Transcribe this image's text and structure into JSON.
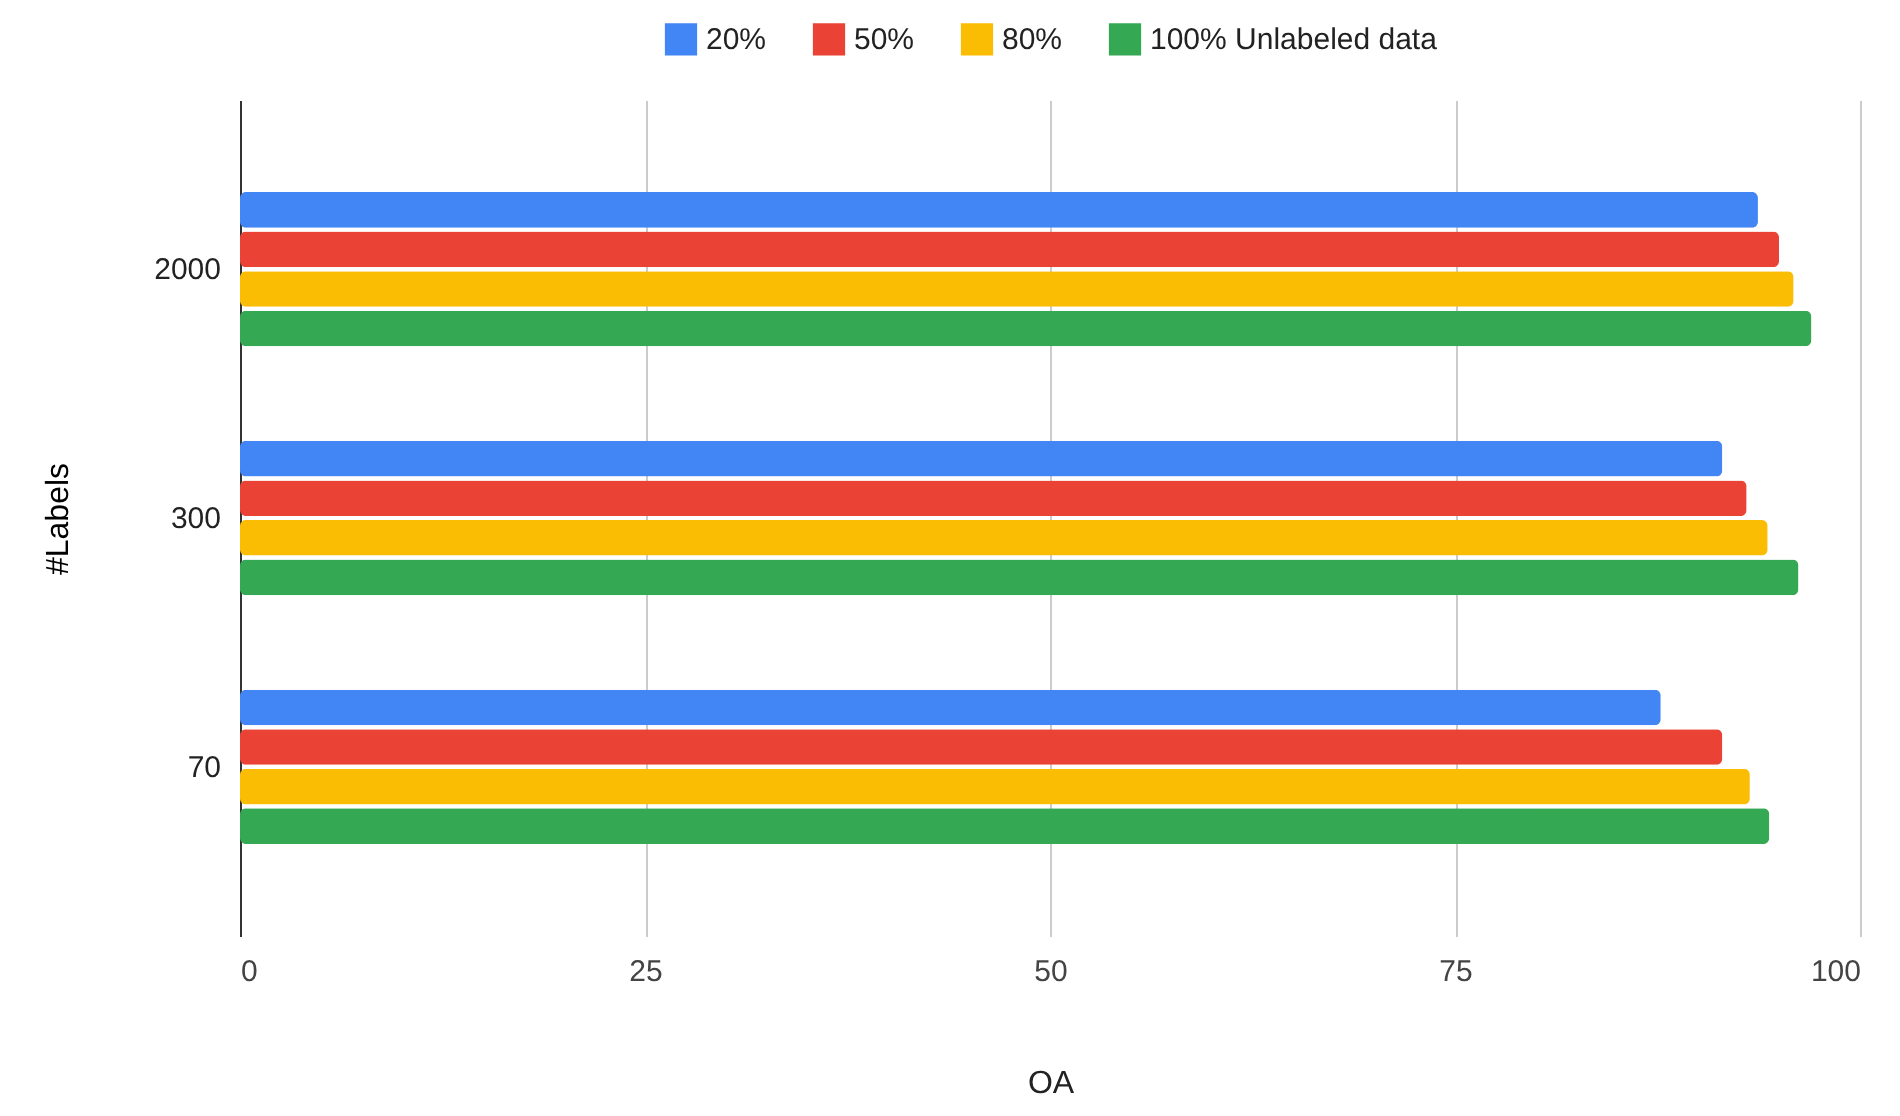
{
  "chart_data": {
    "type": "bar",
    "orientation": "horizontal",
    "xlabel": "OA",
    "ylabel": "#Labels",
    "categories": [
      "2000",
      "300",
      "70"
    ],
    "series": [
      {
        "name": "20%",
        "color": "#4285f4",
        "values": [
          93.7,
          91.5,
          87.7
        ]
      },
      {
        "name": "50%",
        "color": "#ea4335",
        "values": [
          95.0,
          93.0,
          91.5
        ]
      },
      {
        "name": "80%",
        "color": "#fbbc04",
        "values": [
          95.9,
          94.3,
          93.2
        ]
      },
      {
        "name": "100% Unlabeled data",
        "color": "#34a853",
        "values": [
          97.0,
          96.2,
          94.4
        ]
      }
    ],
    "xlim": [
      0,
      100
    ],
    "xticks": [
      0,
      25,
      50,
      75,
      100
    ],
    "grid": "x",
    "legend": "top"
  }
}
